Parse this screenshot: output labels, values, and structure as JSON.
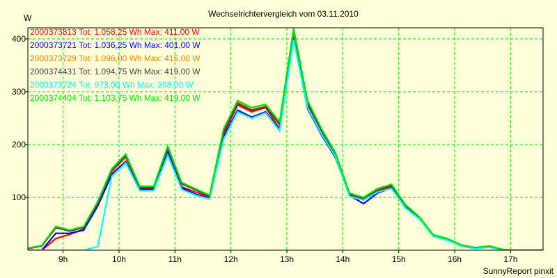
{
  "chart_data": {
    "type": "line",
    "title": "Wechselrichtervergleich vom 03.11.2010",
    "ylabel": "W",
    "xlabel": "",
    "footer": "SunnyReport pinxit",
    "ylim": [
      0,
      421
    ],
    "xlim": [
      8.37,
      17.58
    ],
    "grid": true,
    "legend_placement": "top-left",
    "y_ticks": [
      {
        "v": 100,
        "label": "100"
      },
      {
        "v": 200,
        "label": "200"
      },
      {
        "v": 300,
        "label": "300"
      },
      {
        "v": 400,
        "label": "400"
      }
    ],
    "x_ticks": [
      {
        "v": 9,
        "label": "9h"
      },
      {
        "v": 10,
        "label": "10h"
      },
      {
        "v": 11,
        "label": "11h"
      },
      {
        "v": 12,
        "label": "12h"
      },
      {
        "v": 13,
        "label": "13h"
      },
      {
        "v": 14,
        "label": "14h"
      },
      {
        "v": 15,
        "label": "15h"
      },
      {
        "v": 16,
        "label": "16h"
      },
      {
        "v": 17,
        "label": "17h"
      }
    ],
    "x_start": 8.37,
    "x_step": 0.25,
    "series": [
      {
        "name": "2000373813 Tot: 1.058,25 Wh Max: 411,00 W",
        "color": "#ff0000",
        "values": [
          0,
          0,
          22,
          30,
          40,
          86,
          145,
          168,
          117,
          117,
          188,
          120,
          110,
          100,
          220,
          275,
          262,
          270,
          230,
          411,
          275,
          222,
          178,
          104,
          96,
          112,
          120,
          82,
          60,
          27,
          20,
          8,
          4,
          6,
          0,
          0,
          0,
          0
        ]
      },
      {
        "name": "2000373721 Tot: 1.036,25 Wh Max: 401,00 W",
        "color": "#0000ff",
        "values": [
          0,
          0,
          32,
          32,
          38,
          84,
          143,
          167,
          115,
          115,
          186,
          118,
          106,
          98,
          215,
          265,
          252,
          262,
          228,
          401,
          268,
          218,
          175,
          104,
          88,
          108,
          118,
          80,
          60,
          26,
          20,
          8,
          3,
          6,
          0,
          0,
          0,
          0
        ]
      },
      {
        "name": "2000373729 Tot: 1.096,00 Wh Max: 415,00 W",
        "color": "#ff8000",
        "values": [
          3,
          8,
          42,
          37,
          44,
          90,
          150,
          175,
          120,
          120,
          193,
          125,
          116,
          103,
          226,
          280,
          266,
          273,
          240,
          415,
          282,
          228,
          183,
          107,
          99,
          117,
          124,
          85,
          62,
          28,
          21,
          9,
          4,
          7,
          1,
          0,
          0,
          0
        ]
      },
      {
        "name": "2000374431 Tot: 1.094,75 Wh Max: 419,00 W",
        "color": "#503c3c",
        "values": [
          3,
          8,
          43,
          36,
          43,
          90,
          150,
          178,
          119,
          119,
          193,
          126,
          114,
          102,
          225,
          278,
          265,
          271,
          238,
          419,
          278,
          226,
          181,
          106,
          98,
          114,
          123,
          84,
          62,
          28,
          21,
          9,
          4,
          7,
          1,
          0,
          0,
          0
        ]
      },
      {
        "name": "2000373724 Tot: 973,00 Wh Max: 398,00 W",
        "color": "#00ffff",
        "values": [
          0,
          0,
          0,
          0,
          0,
          7,
          140,
          165,
          113,
          113,
          180,
          115,
          104,
          97,
          210,
          262,
          250,
          260,
          226,
          398,
          270,
          220,
          177,
          102,
          95,
          110,
          117,
          80,
          59,
          26,
          19,
          8,
          3,
          6,
          0,
          0,
          0,
          0
        ]
      },
      {
        "name": "2000374404 Tot: 1.103,75 Wh Max: 419,00 W",
        "color": "#00e000",
        "values": [
          4,
          9,
          45,
          38,
          45,
          92,
          154,
          182,
          121,
          121,
          197,
          128,
          116,
          104,
          230,
          283,
          270,
          276,
          243,
          419,
          283,
          230,
          184,
          108,
          100,
          116,
          125,
          86,
          63,
          29,
          22,
          10,
          5,
          8,
          1,
          0,
          0,
          0
        ]
      }
    ]
  }
}
